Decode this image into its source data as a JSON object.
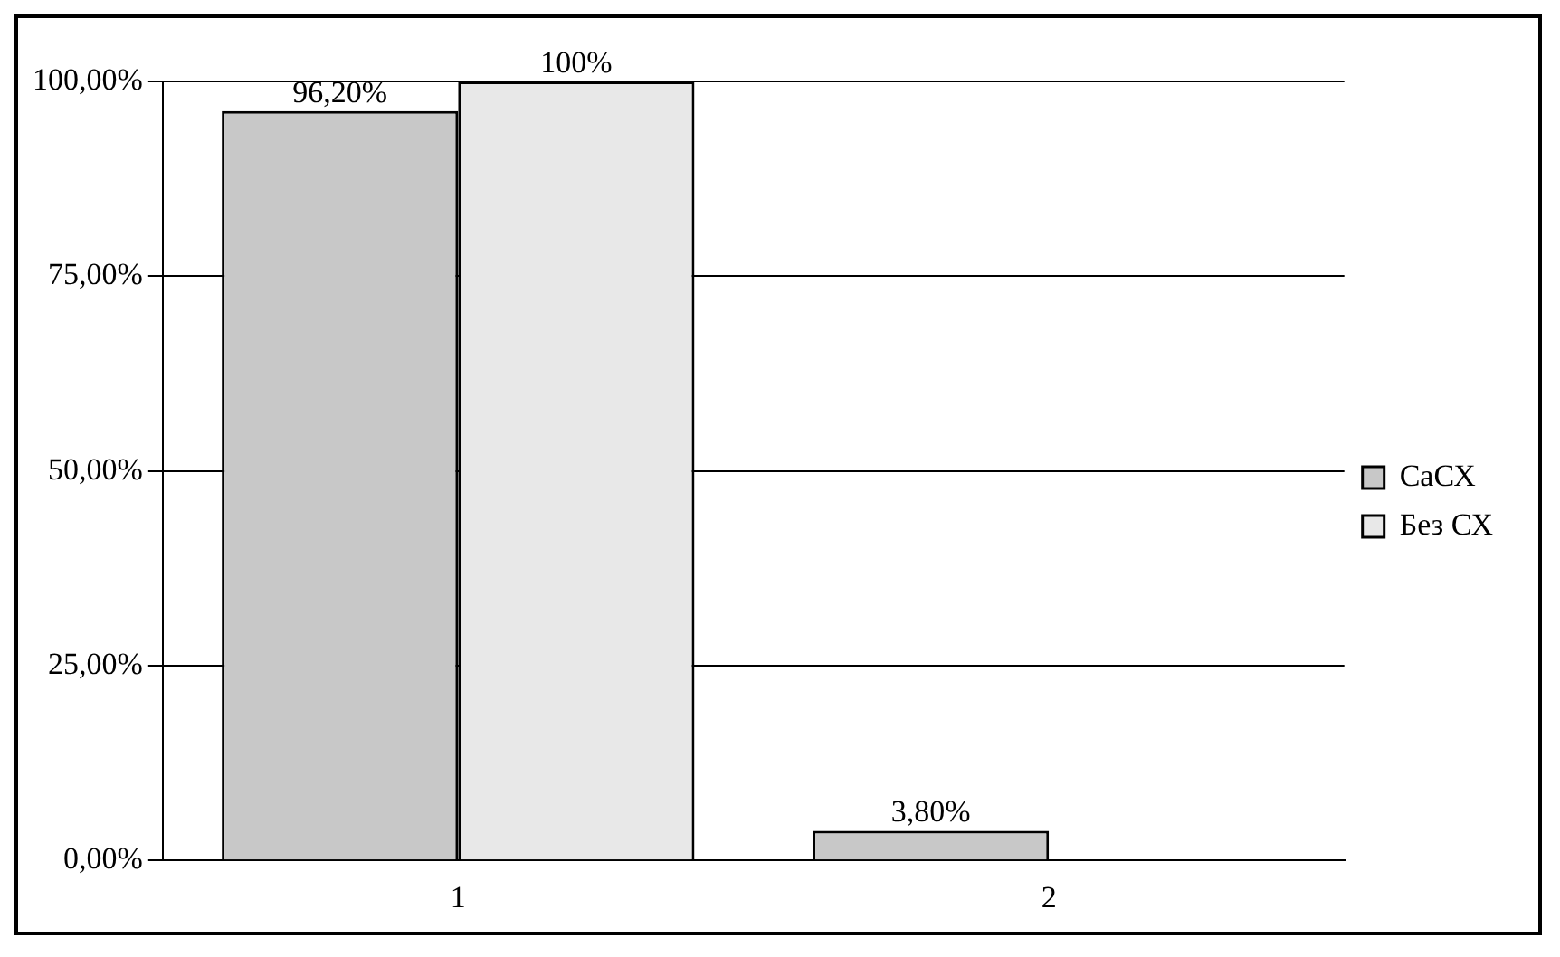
{
  "chart_data": {
    "type": "bar",
    "categories": [
      "1",
      "2"
    ],
    "series": [
      {
        "name": "СаСХ",
        "color": "#c8c8c8",
        "values": [
          96.2,
          3.8
        ],
        "value_labels": [
          "96,20%",
          "3,80%"
        ]
      },
      {
        "name": "Без СХ",
        "color": "#e8e8e8",
        "values": [
          100,
          null
        ],
        "value_labels": [
          "100%",
          null
        ]
      }
    ],
    "ylim": [
      0,
      100
    ],
    "yticks": [
      {
        "value": 0,
        "label": "0,00%"
      },
      {
        "value": 25,
        "label": "25,00%"
      },
      {
        "value": 50,
        "label": "50,00%"
      },
      {
        "value": 75,
        "label": "75,00%"
      },
      {
        "value": 100,
        "label": "100,00%"
      }
    ],
    "grid": "y",
    "legend": "right"
  }
}
